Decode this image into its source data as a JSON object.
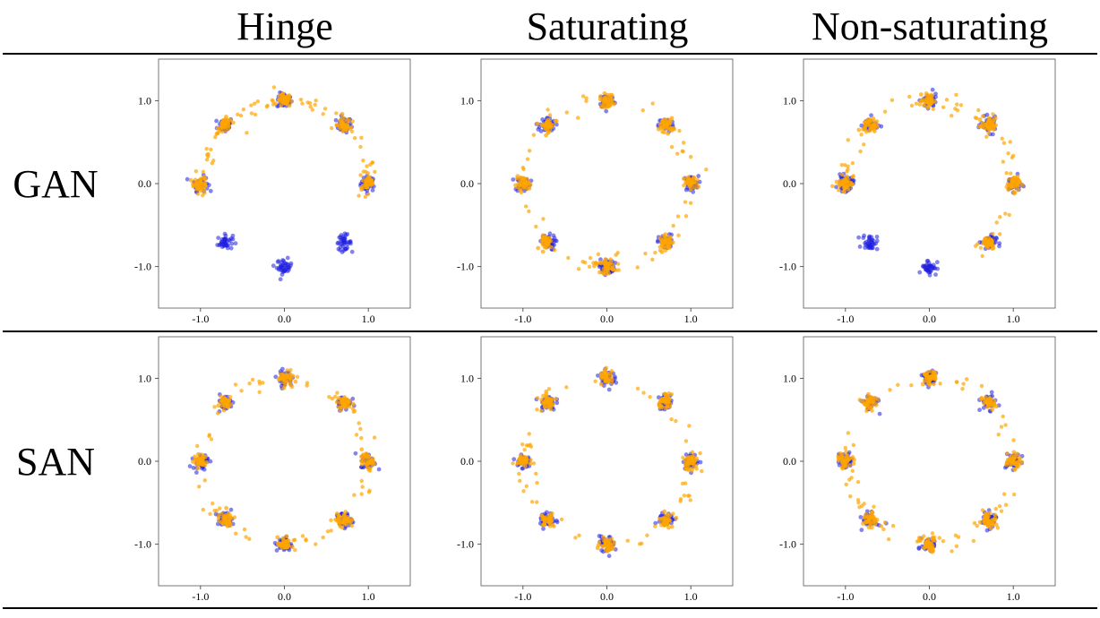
{
  "columns": [
    "Hinge",
    "Saturating",
    "Non-saturating"
  ],
  "rows": [
    "GAN",
    "SAN"
  ],
  "colors": {
    "real": "#1f1fe0",
    "generated": "#ffa500"
  },
  "chart_data": {
    "type": "scatter",
    "xlim": [
      -1.5,
      1.5
    ],
    "ylim": [
      -1.5,
      1.5
    ],
    "xticks": [
      -1.0,
      0.0,
      1.0
    ],
    "yticks": [
      -1.0,
      0.0,
      1.0
    ],
    "xtick_labels": [
      "-1.0",
      "0.0",
      "1.0"
    ],
    "ytick_labels": [
      "-1.0",
      "0.0",
      "1.0"
    ],
    "real_modes": [
      [
        1.0,
        0.0
      ],
      [
        0.707,
        0.707
      ],
      [
        0.0,
        1.0
      ],
      [
        -0.707,
        0.707
      ],
      [
        -1.0,
        0.0
      ],
      [
        -0.707,
        -0.707
      ],
      [
        0.0,
        -1.0
      ],
      [
        0.707,
        -0.707
      ]
    ],
    "panels": [
      {
        "row": "GAN",
        "column": "Hinge",
        "generated_covered_modes": [
          [
            1.0,
            0.0
          ],
          [
            0.707,
            0.707
          ],
          [
            0.0,
            1.0
          ],
          [
            -0.707,
            0.707
          ],
          [
            -1.0,
            0.0
          ]
        ],
        "generated_arc_degrees": [
          -10,
          190
        ]
      },
      {
        "row": "GAN",
        "column": "Saturating",
        "generated_covered_modes": [
          [
            1.0,
            0.0
          ],
          [
            0.707,
            0.707
          ],
          [
            0.0,
            1.0
          ],
          [
            -0.707,
            0.707
          ],
          [
            -1.0,
            0.0
          ],
          [
            -0.707,
            -0.707
          ],
          [
            0.0,
            -1.0
          ],
          [
            0.707,
            -0.707
          ]
        ],
        "generated_arc_degrees": [
          0,
          360
        ]
      },
      {
        "row": "GAN",
        "column": "Non-saturating",
        "generated_covered_modes": [
          [
            1.0,
            0.0
          ],
          [
            0.707,
            0.707
          ],
          [
            0.0,
            1.0
          ],
          [
            -0.707,
            0.707
          ],
          [
            -1.0,
            0.0
          ],
          [
            0.707,
            -0.707
          ]
        ],
        "generated_arc_degrees": [
          -60,
          190
        ]
      },
      {
        "row": "SAN",
        "column": "Hinge",
        "generated_covered_modes": [
          [
            1.0,
            0.0
          ],
          [
            0.707,
            0.707
          ],
          [
            0.0,
            1.0
          ],
          [
            -0.707,
            0.707
          ],
          [
            -1.0,
            0.0
          ],
          [
            -0.707,
            -0.707
          ],
          [
            0.0,
            -1.0
          ],
          [
            0.707,
            -0.707
          ]
        ],
        "generated_arc_degrees": [
          0,
          360
        ]
      },
      {
        "row": "SAN",
        "column": "Saturating",
        "generated_covered_modes": [
          [
            1.0,
            0.0
          ],
          [
            0.707,
            0.707
          ],
          [
            0.0,
            1.0
          ],
          [
            -0.707,
            0.707
          ],
          [
            -1.0,
            0.0
          ],
          [
            -0.707,
            -0.707
          ],
          [
            0.0,
            -1.0
          ],
          [
            0.707,
            -0.707
          ]
        ],
        "generated_arc_degrees": [
          0,
          360
        ]
      },
      {
        "row": "SAN",
        "column": "Non-saturating",
        "generated_covered_modes": [
          [
            1.0,
            0.0
          ],
          [
            0.707,
            0.707
          ],
          [
            0.0,
            1.0
          ],
          [
            -0.707,
            0.707
          ],
          [
            -1.0,
            0.0
          ],
          [
            -0.707,
            -0.707
          ],
          [
            0.0,
            -1.0
          ],
          [
            0.707,
            -0.707
          ]
        ],
        "generated_arc_degrees": [
          0,
          360
        ]
      }
    ]
  }
}
